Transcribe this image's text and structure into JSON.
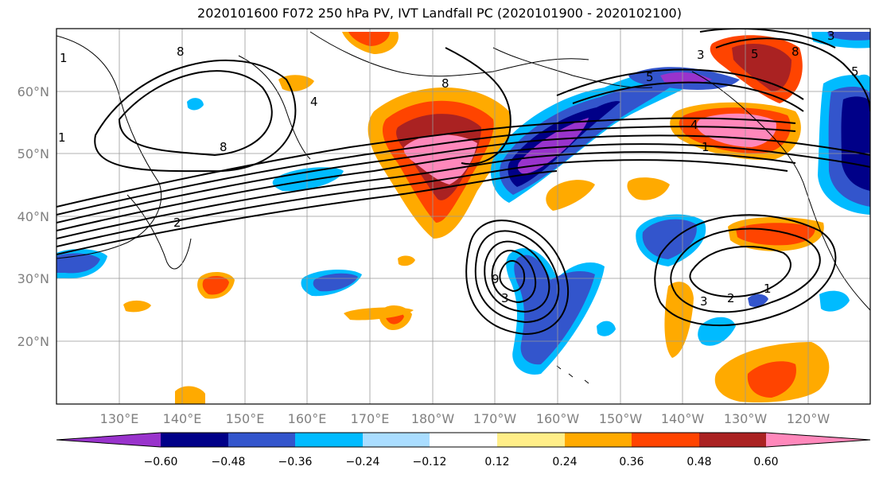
{
  "title": "2020101600 F072 250 hPa PV, IVT Landfall PC (2020101900 - 2020102100)",
  "map": {
    "lon_labels": [
      "130°E",
      "140°E",
      "150°E",
      "160°E",
      "170°E",
      "180°W",
      "170°W",
      "160°W",
      "150°W",
      "140°W",
      "130°W",
      "120°W"
    ],
    "lat_labels": [
      "60°N",
      "50°N",
      "40°N",
      "30°N",
      "20°N"
    ],
    "contour_labels": [
      "8",
      "8",
      "8",
      "4",
      "4",
      "8",
      "5",
      "5",
      "3",
      "3",
      "2",
      "1",
      "1",
      "5",
      "9",
      "3",
      "3",
      "2",
      "1",
      "1"
    ]
  },
  "colorbar": {
    "colors": [
      "#9933cc",
      "#000088",
      "#3355cc",
      "#00bbff",
      "#aaddff",
      "#ffffff",
      "#ffee88",
      "#ffaa00",
      "#ff4400",
      "#aa2222",
      "#ff88bb"
    ],
    "tick_labels": [
      "−0.60",
      "−0.48",
      "−0.36",
      "−0.24",
      "−0.12",
      "0.12",
      "0.24",
      "0.36",
      "0.48",
      "0.60"
    ]
  }
}
